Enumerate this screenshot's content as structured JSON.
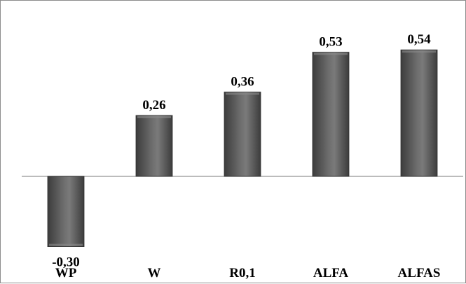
{
  "chart_data": {
    "type": "bar",
    "title": "",
    "xlabel": "",
    "ylabel": "",
    "categories": [
      "WP",
      "W",
      "R0,1",
      "ALFA",
      "ALFAS"
    ],
    "values": [
      -0.3,
      0.26,
      0.36,
      0.53,
      0.54
    ],
    "value_labels": [
      "-0,30",
      "0,26",
      "0,36",
      "0,53",
      "0,54"
    ],
    "ylim": [
      -0.34,
      0.69
    ],
    "grid": false,
    "legend": "none",
    "colors": {
      "bar_dark": "#3c3c3c",
      "bar_mid": "#6e6e6e",
      "bar_light": "#8a8a8a",
      "axis": "#8c8c8c"
    }
  }
}
